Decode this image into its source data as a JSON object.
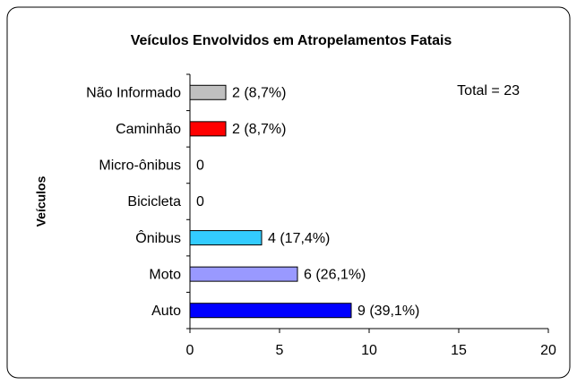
{
  "chart_data": {
    "type": "barh",
    "title": "Veículos Envolvidos em Atropelamentos Fatais",
    "ylabel": "Veículos",
    "annotation": "Total = 23",
    "categories": [
      "Não Informado",
      "Caminhão",
      "Micro-ônibus",
      "Bicicleta",
      "Ônibus",
      "Moto",
      "Auto"
    ],
    "values": [
      2,
      2,
      0,
      0,
      4,
      6,
      9
    ],
    "value_labels": [
      "2 (8,7%)",
      "2 (8,7%)",
      "0",
      "0",
      "4 (17,4%)",
      "6 (26,1%)",
      "9 (39,1%)"
    ],
    "colors": [
      "#c0c0c0",
      "#ff0000",
      null,
      null,
      "#33ccff",
      "#9999ff",
      "#0000ff"
    ],
    "xlim": [
      0,
      20
    ],
    "xticks": [
      0,
      5,
      10,
      15,
      20
    ],
    "grid": false
  }
}
